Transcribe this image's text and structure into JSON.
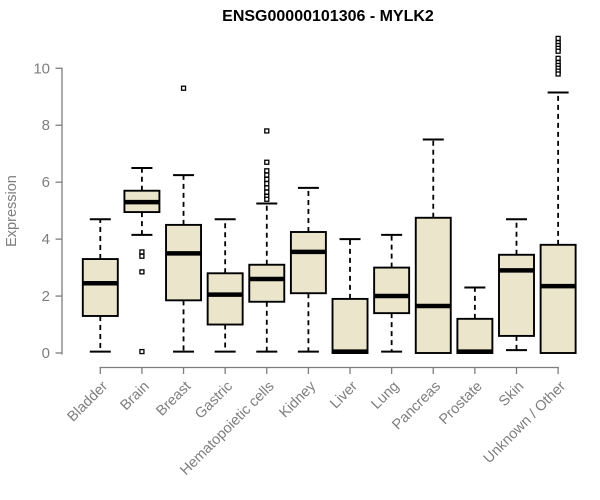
{
  "chart_data": {
    "type": "boxplot",
    "title": "ENSG00000101306 - MYLK2",
    "ylabel": "Expression",
    "xlabel": "",
    "ylim": [
      0,
      11.2
    ],
    "y_ticks": [
      0,
      2,
      4,
      6,
      8,
      10
    ],
    "grid": false,
    "legend": false,
    "categories": [
      "Bladder",
      "Brain",
      "Breast",
      "Gastric",
      "Hematopoietic cells",
      "Kidney",
      "Liver",
      "Lung",
      "Pancreas",
      "Prostate",
      "Skin",
      "Unknown / Other"
    ],
    "stats": [
      {
        "whisker_low": 0.05,
        "q1": 1.3,
        "median": 2.45,
        "q3": 3.3,
        "whisker_high": 4.7,
        "outliers": []
      },
      {
        "whisker_low": 4.15,
        "q1": 4.95,
        "median": 5.3,
        "q3": 5.7,
        "whisker_high": 6.5,
        "outliers": [
          3.55,
          3.4,
          2.85,
          0.05
        ]
      },
      {
        "whisker_low": 0.05,
        "q1": 1.85,
        "median": 3.5,
        "q3": 4.5,
        "whisker_high": 6.25,
        "outliers": [
          9.3
        ]
      },
      {
        "whisker_low": 0.05,
        "q1": 1.0,
        "median": 2.05,
        "q3": 2.8,
        "whisker_high": 4.7,
        "outliers": []
      },
      {
        "whisker_low": 0.05,
        "q1": 1.8,
        "median": 2.6,
        "q3": 3.1,
        "whisker_high": 5.25,
        "outliers": [
          7.8,
          6.7,
          6.4,
          6.25,
          6.1,
          5.95,
          5.8,
          5.65,
          5.5,
          5.4
        ]
      },
      {
        "whisker_low": 0.05,
        "q1": 2.1,
        "median": 3.55,
        "q3": 4.25,
        "whisker_high": 5.8,
        "outliers": []
      },
      {
        "whisker_low": 0.0,
        "q1": 0.0,
        "median": 0.05,
        "q3": 1.9,
        "whisker_high": 4.0,
        "outliers": []
      },
      {
        "whisker_low": 0.05,
        "q1": 1.4,
        "median": 2.0,
        "q3": 3.0,
        "whisker_high": 4.15,
        "outliers": []
      },
      {
        "whisker_low": 0.0,
        "q1": 0.0,
        "median": 1.65,
        "q3": 4.75,
        "whisker_high": 7.5,
        "outliers": []
      },
      {
        "whisker_low": 0.0,
        "q1": 0.0,
        "median": 0.05,
        "q3": 1.2,
        "whisker_high": 2.3,
        "outliers": []
      },
      {
        "whisker_low": 0.1,
        "q1": 0.6,
        "median": 2.9,
        "q3": 3.45,
        "whisker_high": 4.7,
        "outliers": []
      },
      {
        "whisker_low": 0.0,
        "q1": 0.0,
        "median": 2.35,
        "q3": 3.8,
        "whisker_high": 9.15,
        "outliers": [
          11.05,
          10.9,
          10.8,
          10.7,
          10.6,
          10.35,
          10.2,
          10.1,
          10.0,
          9.9,
          9.8
        ]
      }
    ],
    "colors": {
      "box_fill": "#EBE6CB",
      "box_border": "#000000",
      "median": "#000000",
      "axis": "#7E7E7E",
      "tick_label": "#7E7E7E",
      "title": "#000000",
      "background": "#FFFFFF",
      "outlier_stroke": "#000000",
      "outlier_fill": "#FFFFFF"
    }
  }
}
